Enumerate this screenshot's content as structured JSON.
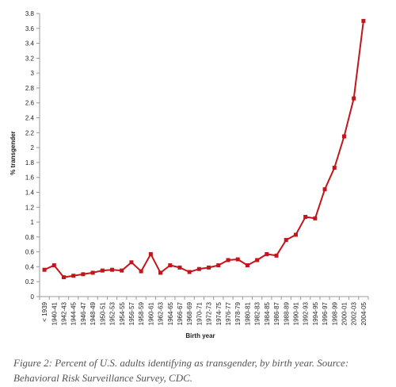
{
  "chart_data": {
    "type": "line",
    "xlabel": "Birth year",
    "ylabel": "% transgender",
    "ylim": [
      0,
      3.8
    ],
    "ytick_step": 0.2,
    "grid": false,
    "legend": "none",
    "categories": [
      "< 1939",
      "1940-41",
      "1942-43",
      "1944-45",
      "1946-47",
      "1948-49",
      "1950-51",
      "1952-53",
      "1954-55",
      "1956-57",
      "1958-59",
      "1960-61",
      "1962-63",
      "1964-65",
      "1966-67",
      "1968-69",
      "1970-71",
      "1972-73",
      "1974-75",
      "1976-77",
      "1978-79",
      "1980-81",
      "1982-83",
      "1984-85",
      "1986-87",
      "1988-89",
      "1990-91",
      "1992-93",
      "1994-95",
      "1996-97",
      "1998-99",
      "2000-01",
      "2002-03",
      "2004-05"
    ],
    "values": [
      0.36,
      0.42,
      0.26,
      0.28,
      0.3,
      0.32,
      0.35,
      0.36,
      0.35,
      0.46,
      0.34,
      0.57,
      0.32,
      0.42,
      0.39,
      0.33,
      0.37,
      0.39,
      0.42,
      0.49,
      0.5,
      0.42,
      0.49,
      0.57,
      0.55,
      0.76,
      0.83,
      1.07,
      1.05,
      1.44,
      1.73,
      2.15,
      2.66,
      3.7
    ],
    "colors": {
      "line": "#c0161c",
      "marker": "#c0161c",
      "axis": "#999999"
    }
  },
  "caption": "Figure 2: Percent of U.S. adults identifying as transgender, by birth year. Source: Behavioral Risk Surveillance Survey, CDC."
}
